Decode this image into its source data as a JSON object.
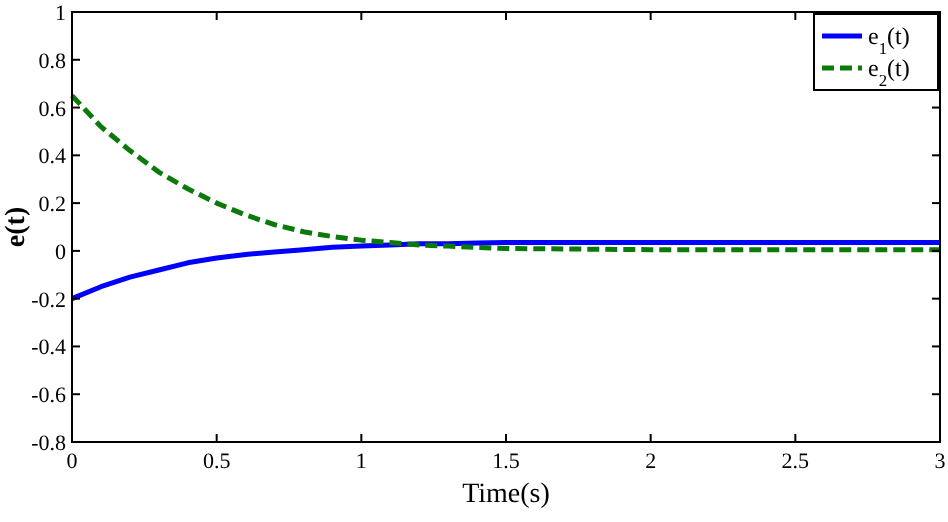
{
  "chart_data": {
    "type": "line",
    "xlabel": "Time(s)",
    "ylabel": "e(t)",
    "x": [
      0,
      0.1,
      0.2,
      0.3,
      0.4,
      0.5,
      0.6,
      0.7,
      0.8,
      0.9,
      1.0,
      1.1,
      1.2,
      1.3,
      1.4,
      1.5,
      2,
      2.5,
      3
    ],
    "series": [
      {
        "name": "e$_{1}$(t)",
        "color": "#0000ff",
        "line_style": "solid",
        "values": [
          -0.2,
          -0.15,
          -0.11,
          -0.08,
          -0.05,
          -0.03,
          -0.015,
          -0.005,
          0.005,
          0.015,
          0.02,
          0.025,
          0.03,
          0.03,
          0.033,
          0.035,
          0.035,
          0.035,
          0.035
        ]
      },
      {
        "name": "e$_{2}$(t)",
        "color": "#0b7a0b",
        "line_style": "dashed",
        "values": [
          0.65,
          0.52,
          0.42,
          0.33,
          0.26,
          0.2,
          0.15,
          0.11,
          0.08,
          0.06,
          0.045,
          0.035,
          0.025,
          0.02,
          0.015,
          0.01,
          0.005,
          0.005,
          0.005
        ]
      }
    ],
    "xlim": [
      0,
      3
    ],
    "xticks": [
      0,
      0.5,
      1,
      1.5,
      2,
      2.5,
      3
    ],
    "ylim": [
      -0.8,
      1
    ],
    "yticks": [
      -0.8,
      -0.6,
      -0.4,
      -0.2,
      0,
      0.2,
      0.4,
      0.6,
      0.8,
      1
    ],
    "grid": false,
    "legend": "top right",
    "marker": "none"
  }
}
